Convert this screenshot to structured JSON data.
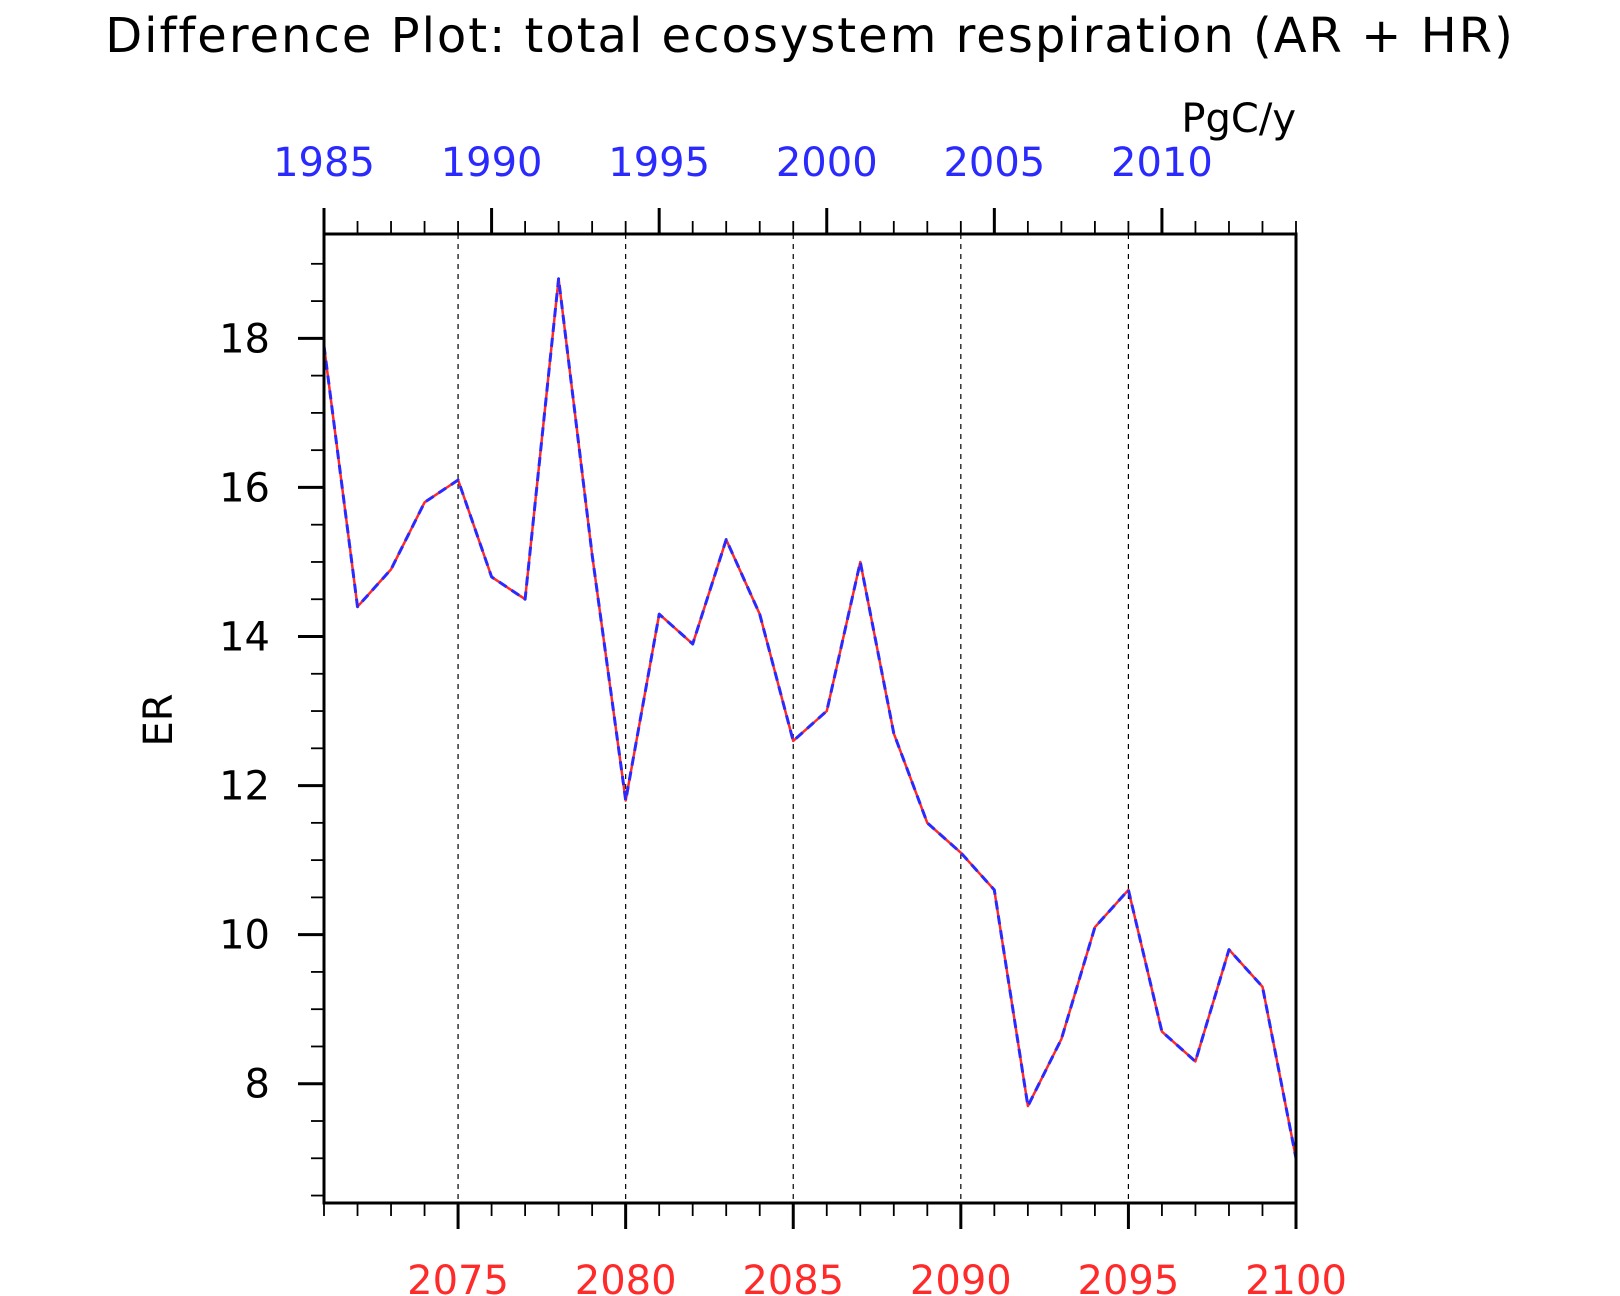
{
  "chart_data": {
    "type": "line",
    "title": "Difference Plot: total ecosystem respiration (AR + HR)",
    "units_label": "PgC/y",
    "ylabel": "ER",
    "ylim": [
      6.4,
      19.4
    ],
    "yticks": [
      8,
      10,
      12,
      14,
      16,
      18
    ],
    "bottom_axis": {
      "range": [
        2071,
        2100
      ],
      "ticks": [
        2075,
        2080,
        2085,
        2090,
        2095,
        2100
      ],
      "color": "#ff2a2a"
    },
    "top_axis": {
      "range": [
        1985,
        2014
      ],
      "ticks": [
        1985,
        1990,
        1995,
        2000,
        2005,
        2010
      ],
      "color": "#2a2aff"
    },
    "grid": "vertical-dashed",
    "series": [
      {
        "color": "#ff2a2a",
        "style": "solid",
        "x": [
          2071,
          2072,
          2073,
          2074,
          2075,
          2076,
          2077,
          2078,
          2079,
          2080,
          2081,
          2082,
          2083,
          2084,
          2085,
          2086,
          2087,
          2088,
          2089,
          2090,
          2091,
          2092,
          2093,
          2094,
          2095,
          2096,
          2097,
          2098,
          2099,
          2100
        ],
        "values": [
          17.9,
          14.4,
          14.9,
          15.8,
          16.1,
          14.8,
          14.5,
          18.8,
          15.1,
          11.8,
          14.3,
          13.9,
          15.3,
          14.3,
          12.6,
          13.0,
          15.0,
          12.7,
          11.5,
          11.1,
          10.6,
          7.7,
          8.6,
          10.1,
          10.6,
          8.7,
          8.3,
          9.8,
          9.3,
          7.0
        ]
      },
      {
        "color": "#2a2aff",
        "style": "dashed",
        "x": [
          1985,
          1986,
          1987,
          1988,
          1989,
          1990,
          1991,
          1992,
          1993,
          1994,
          1995,
          1996,
          1997,
          1998,
          1999,
          2000,
          2001,
          2002,
          2003,
          2004,
          2005,
          2006,
          2007,
          2008,
          2009,
          2010,
          2011,
          2012,
          2013,
          2014
        ],
        "values": [
          17.9,
          14.4,
          14.9,
          15.8,
          16.1,
          14.8,
          14.5,
          18.8,
          15.1,
          11.8,
          14.3,
          13.9,
          15.3,
          14.3,
          12.6,
          13.0,
          15.0,
          12.7,
          11.5,
          11.1,
          10.6,
          7.7,
          8.6,
          10.1,
          10.6,
          8.7,
          8.3,
          9.8,
          9.3,
          7.0
        ]
      }
    ]
  }
}
